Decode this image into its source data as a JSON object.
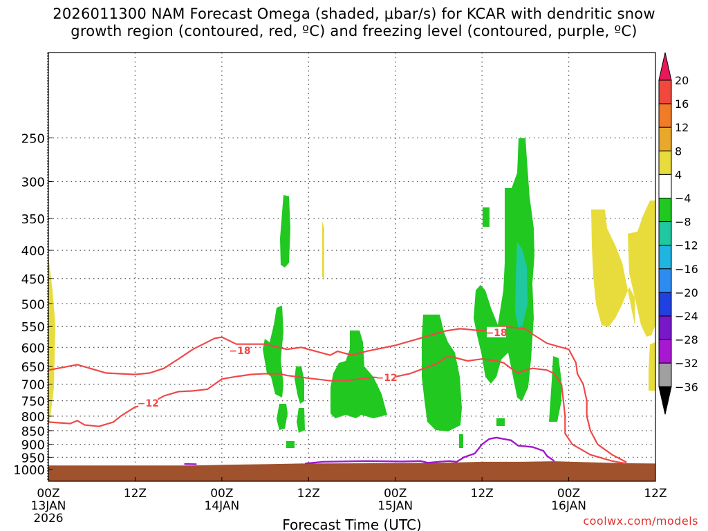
{
  "title_line1": "2026011300 NAM Forecast Omega (shaded, μbar/s) for KCAR with dendritic snow",
  "title_line2": "growth region (contoured, red, ºC) and freezing level (contoured, purple, ºC)",
  "credit": "coolwx.com/models",
  "chart_data": {
    "type": "cross-section",
    "xlabel": "Forecast Time (UTC)",
    "x_range_hours": [
      0,
      84
    ],
    "x_ticks": [
      {
        "h": 0,
        "label": "00Z",
        "date": "13JAN",
        "year": "2026"
      },
      {
        "h": 12,
        "label": "12Z",
        "date": "",
        "year": ""
      },
      {
        "h": 24,
        "label": "00Z",
        "date": "14JAN",
        "year": ""
      },
      {
        "h": 36,
        "label": "12Z",
        "date": "",
        "year": ""
      },
      {
        "h": 48,
        "label": "00Z",
        "date": "15JAN",
        "year": ""
      },
      {
        "h": 60,
        "label": "12Z",
        "date": "",
        "year": ""
      },
      {
        "h": 72,
        "label": "00Z",
        "date": "16JAN",
        "year": ""
      },
      {
        "h": 84,
        "label": "12Z",
        "date": "",
        "year": ""
      }
    ],
    "y_ticks_hpa": [
      250,
      300,
      350,
      400,
      450,
      500,
      550,
      600,
      650,
      700,
      750,
      800,
      850,
      900,
      950,
      1000
    ],
    "y_range_hpa": [
      175,
      1050
    ],
    "colorbar": {
      "labels": [
        "20",
        "16",
        "12",
        "8",
        "4",
        "−4",
        "−8",
        "−12",
        "−16",
        "−20",
        "−24",
        "−28",
        "−32",
        "−36"
      ],
      "colors": [
        "#e8185a",
        "#f0483c",
        "#f07c28",
        "#e8a82c",
        "#e8dc3c",
        "#ffffff",
        "#20c820",
        "#20c8a0",
        "#20b4e0",
        "#2c8cf0",
        "#2040e0",
        "#7818c8",
        "#a818d0",
        "#a0a0a0",
        "#000000"
      ]
    },
    "contour_labels": [
      {
        "text": "−18",
        "h": 26.5,
        "p": 612
      },
      {
        "text": "−18",
        "h": 62.0,
        "p": 567
      },
      {
        "text": "−12",
        "h": 46.8,
        "p": 685
      },
      {
        "text": "−12",
        "h": 13.8,
        "p": 762
      }
    ],
    "dsg_line_upper": [
      [
        0,
        660
      ],
      [
        4,
        645
      ],
      [
        8,
        668
      ],
      [
        12,
        672
      ],
      [
        14,
        668
      ],
      [
        16,
        655
      ],
      [
        18,
        630
      ],
      [
        20,
        605
      ],
      [
        23,
        578
      ],
      [
        24,
        575
      ],
      [
        26,
        592
      ],
      [
        30,
        592
      ],
      [
        33,
        605
      ],
      [
        35,
        600
      ],
      [
        37,
        610
      ],
      [
        39,
        620
      ],
      [
        40,
        610
      ],
      [
        42,
        620
      ],
      [
        44,
        610
      ],
      [
        48,
        595
      ],
      [
        50,
        585
      ],
      [
        52,
        575
      ],
      [
        55,
        560
      ],
      [
        57,
        555
      ],
      [
        60,
        560
      ],
      [
        63,
        550
      ],
      [
        66,
        555
      ],
      [
        67,
        568
      ],
      [
        69,
        590
      ],
      [
        71,
        600
      ],
      [
        72,
        605
      ],
      [
        73,
        640
      ],
      [
        73.2,
        670
      ],
      [
        74,
        700
      ],
      [
        74.5,
        750
      ],
      [
        74.5,
        800
      ],
      [
        75,
        850
      ],
      [
        76,
        900
      ],
      [
        78,
        940
      ],
      [
        80,
        970
      ]
    ],
    "dsg_line_lower": [
      [
        0,
        820
      ],
      [
        3,
        825
      ],
      [
        4,
        815
      ],
      [
        5,
        830
      ],
      [
        7,
        835
      ],
      [
        9,
        820
      ],
      [
        10,
        800
      ],
      [
        12,
        770
      ],
      [
        14,
        760
      ],
      [
        16,
        735
      ],
      [
        18,
        722
      ],
      [
        20,
        720
      ],
      [
        22,
        715
      ],
      [
        24,
        685
      ],
      [
        26,
        678
      ],
      [
        28,
        672
      ],
      [
        30,
        670
      ],
      [
        32,
        670
      ],
      [
        33,
        675
      ],
      [
        35,
        680
      ],
      [
        37,
        685
      ],
      [
        39,
        690
      ],
      [
        41,
        690
      ],
      [
        43,
        685
      ],
      [
        45,
        680
      ],
      [
        47,
        683
      ],
      [
        50,
        670
      ],
      [
        52,
        655
      ],
      [
        54,
        640
      ],
      [
        55,
        625
      ],
      [
        56,
        625
      ],
      [
        58,
        635
      ],
      [
        60,
        630
      ],
      [
        62,
        635
      ],
      [
        63,
        640
      ],
      [
        64,
        655
      ],
      [
        65,
        668
      ],
      [
        66,
        660
      ],
      [
        67,
        655
      ],
      [
        69,
        660
      ],
      [
        70,
        670
      ],
      [
        71,
        700
      ],
      [
        71.5,
        800
      ],
      [
        71.5,
        860
      ],
      [
        72.5,
        900
      ],
      [
        75,
        940
      ],
      [
        78,
        965
      ],
      [
        80,
        975
      ]
    ],
    "freezing_level": [
      [
        18.8,
        977
      ],
      [
        20.5,
        978
      ]
    ],
    "freezing_level_2": [
      [
        35.5,
        975
      ],
      [
        38,
        968
      ],
      [
        44,
        965
      ],
      [
        49,
        967
      ],
      [
        51.5,
        965
      ],
      [
        52.5,
        972
      ],
      [
        54,
        968
      ],
      [
        55.5,
        965
      ],
      [
        56.5,
        968
      ],
      [
        57.5,
        950
      ],
      [
        59,
        935
      ],
      [
        60,
        900
      ],
      [
        61,
        880
      ],
      [
        62,
        875
      ],
      [
        63,
        880
      ],
      [
        64,
        885
      ],
      [
        65,
        905
      ],
      [
        67,
        910
      ],
      [
        68.5,
        925
      ],
      [
        69,
        945
      ],
      [
        70,
        965
      ]
    ],
    "ground": [
      [
        0,
        983
      ],
      [
        20,
        983
      ],
      [
        25,
        980
      ],
      [
        30,
        978
      ],
      [
        35,
        975
      ],
      [
        45,
        974
      ],
      [
        55,
        972
      ],
      [
        60,
        968
      ],
      [
        65,
        968
      ],
      [
        70,
        966
      ],
      [
        75,
        970
      ],
      [
        80,
        974
      ],
      [
        84,
        975
      ]
    ]
  }
}
